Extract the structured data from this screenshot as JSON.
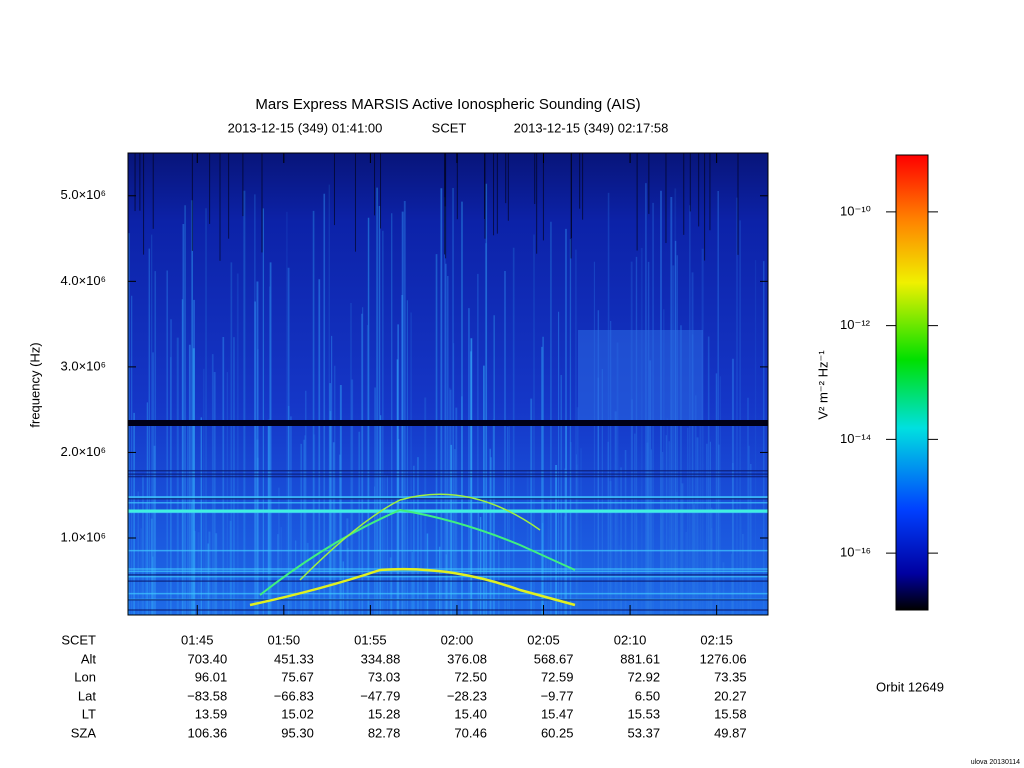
{
  "chart_data": {
    "type": "spectrogram",
    "title": "Mars Express MARSIS Active Ionospheric Sounding (AIS)",
    "subtitle": {
      "start": "2013-12-15 (349) 01:41:00",
      "scale": "SCET",
      "end": "2013-12-15 (349) 02:17:58"
    },
    "y_label": "frequency (Hz)",
    "ylim": [
      100000,
      5500000
    ],
    "yticks": [
      {
        "value": 1000000,
        "label": "1.0×10⁶"
      },
      {
        "value": 2000000,
        "label": "2.0×10⁶"
      },
      {
        "value": 3000000,
        "label": "3.0×10⁶"
      },
      {
        "value": 4000000,
        "label": "4.0×10⁶"
      },
      {
        "value": 5000000,
        "label": "5.0×10⁶"
      }
    ],
    "xticks": [
      "01:45",
      "01:50",
      "01:55",
      "02:00",
      "02:05",
      "02:10",
      "02:15"
    ],
    "ephemeris": {
      "time_label": "SCET",
      "rows": [
        {
          "label": "Alt",
          "values": [
            "703.40",
            "451.33",
            "334.88",
            "376.08",
            "568.67",
            "881.61",
            "1276.06"
          ]
        },
        {
          "label": "Lon",
          "values": [
            "96.01",
            "75.67",
            "73.03",
            "72.50",
            "72.59",
            "72.92",
            "73.35"
          ]
        },
        {
          "label": "Lat",
          "values": [
            "−83.58",
            "−66.83",
            "−47.79",
            "−28.23",
            "−9.77",
            "6.50",
            "20.27"
          ]
        },
        {
          "label": "LT",
          "values": [
            "13.59",
            "15.02",
            "15.28",
            "15.40",
            "15.47",
            "15.53",
            "15.58"
          ]
        },
        {
          "label": "SZA",
          "values": [
            "106.36",
            "95.30",
            "82.78",
            "70.46",
            "60.25",
            "53.37",
            "49.87"
          ]
        }
      ]
    },
    "colorbar": {
      "label": "V² m⁻² Hz⁻¹",
      "log_scale": true,
      "clim": [
        1e-17,
        1e-09
      ],
      "ticks": [
        {
          "value": 1e-10,
          "label": "10⁻¹⁰"
        },
        {
          "value": 1e-12,
          "label": "10⁻¹²"
        },
        {
          "value": 1e-14,
          "label": "10⁻¹⁴"
        },
        {
          "value": 1e-16,
          "label": "10⁻¹⁶"
        }
      ]
    },
    "orbit": "Orbit 12649",
    "footer": "ulova 20130114"
  }
}
